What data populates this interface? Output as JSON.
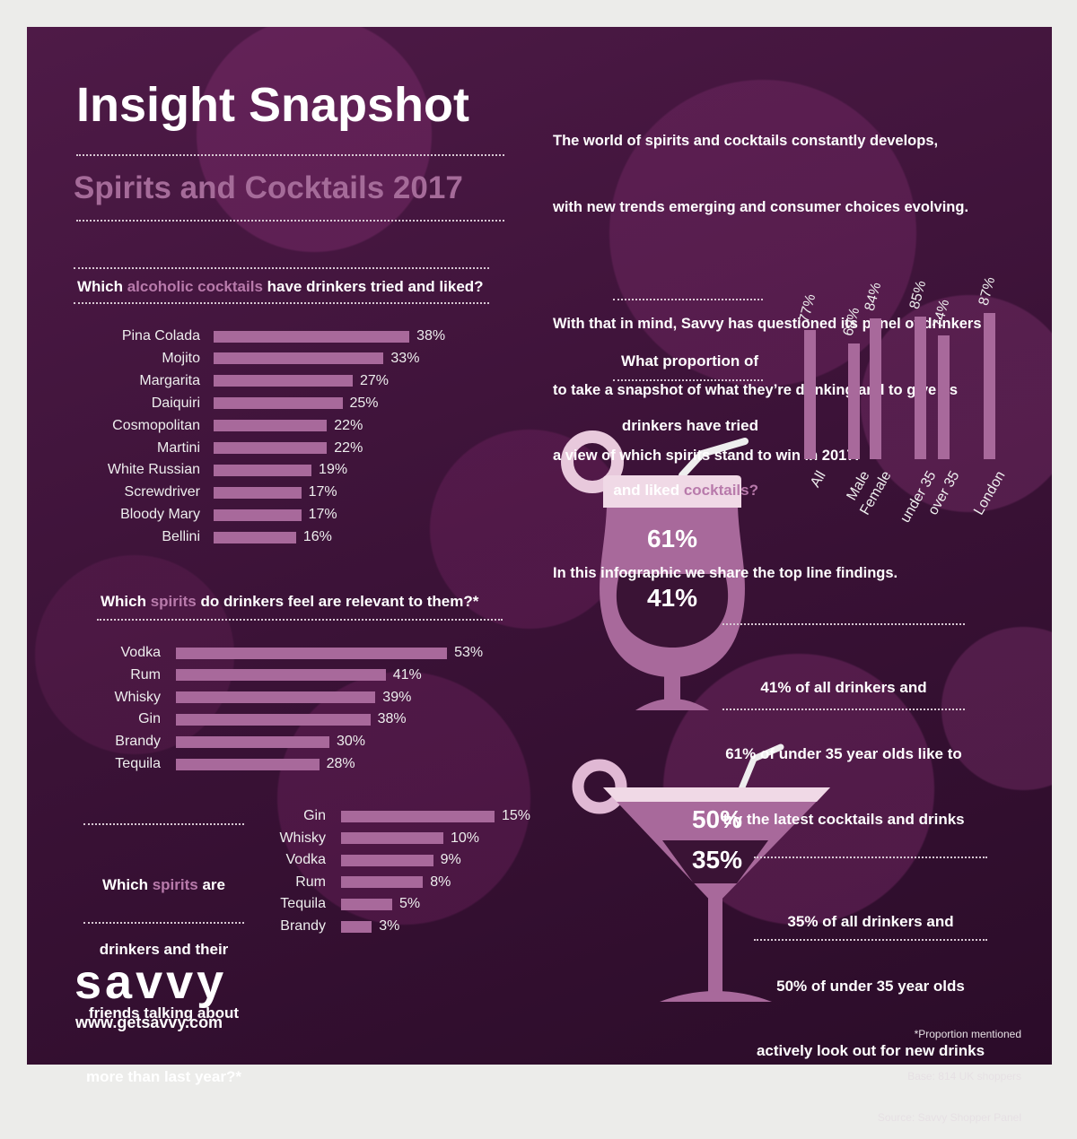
{
  "header": {
    "title": "Insight Snapshot",
    "subtitle": "Spirits and Cocktails 2017"
  },
  "intro": [
    [
      "The world of spirits and cocktails constantly develops,",
      "with new trends emerging and consumer choices evolving."
    ],
    [
      "With that in mind, Savvy has questioned its panel of drinkers",
      "to take a snapshot of what they’re drinking and to give us",
      "a view of which spirits stand to win in 2017."
    ],
    [
      "In this infographic we share the top line findings."
    ]
  ],
  "chart_data": [
    {
      "type": "bar",
      "orientation": "horizontal",
      "color": "#a8699b",
      "title": [
        "Which ",
        "alcoholic cocktails",
        " have drinkers tried and liked?"
      ],
      "categories": [
        "Pina Colada",
        "Mojito",
        "Margarita",
        "Daiquiri",
        "Cosmopolitan",
        "Martini",
        "White Russian",
        "Screwdriver",
        "Bloody Mary",
        "Bellini"
      ],
      "values": [
        38,
        33,
        27,
        25,
        22,
        22,
        19,
        17,
        17,
        16
      ],
      "value_labels": [
        "38%",
        "33%",
        "27%",
        "25%",
        "22%",
        "22%",
        "19%",
        "17%",
        "17%",
        "16%"
      ]
    },
    {
      "type": "bar",
      "orientation": "horizontal",
      "color": "#a8699b",
      "title": [
        "Which ",
        "spirits",
        " do drinkers feel are relevant to them?*"
      ],
      "categories": [
        "Vodka",
        "Rum",
        "Whisky",
        "Gin",
        "Brandy",
        "Tequila"
      ],
      "values": [
        53,
        41,
        39,
        38,
        30,
        28
      ],
      "value_labels": [
        "53%",
        "41%",
        "39%",
        "38%",
        "30%",
        "28%"
      ]
    },
    {
      "type": "bar",
      "orientation": "horizontal",
      "color": "#a8699b",
      "title": [
        [
          "Which ",
          "spirits",
          " are"
        ],
        [
          "drinkers and their"
        ],
        [
          "friends talking about"
        ],
        [
          "more than last year?*"
        ]
      ],
      "categories": [
        "Gin",
        "Whisky",
        "Vodka",
        "Rum",
        "Tequila",
        "Brandy"
      ],
      "values": [
        15,
        10,
        9,
        8,
        5,
        3
      ],
      "value_labels": [
        "15%",
        "10%",
        "9%",
        "8%",
        "5%",
        "3%"
      ]
    },
    {
      "type": "bar",
      "orientation": "vertical",
      "color": "#a8699b",
      "title": [
        [
          "What proportion of"
        ],
        [
          "drinkers have tried"
        ],
        [
          "and liked ",
          "cocktails?"
        ]
      ],
      "categories": [
        "All",
        "Male",
        "Female",
        "under 35",
        "over 35",
        "London"
      ],
      "values": [
        77,
        69,
        84,
        85,
        74,
        87
      ],
      "value_labels": [
        "77%",
        "69%",
        "84%",
        "85%",
        "74%",
        "87%"
      ]
    }
  ],
  "glasses": [
    {
      "top": "61%",
      "bottom": "41%",
      "caption": [
        [
          "41%",
          " of all drinkers and"
        ],
        [
          "61%",
          " of under 35 year olds like to"
        ],
        [
          "try the latest cocktails and drinks"
        ]
      ]
    },
    {
      "top": "50%",
      "bottom": "35%",
      "caption": [
        [
          "35%",
          " of all drinkers and"
        ],
        [
          "50%",
          " of under 35 year olds"
        ],
        [
          "actively look out for new drinks"
        ]
      ]
    }
  ],
  "footer": {
    "brand": "savvy",
    "url": "www.getsavvy.com",
    "notes": [
      "*Proportion mentioned",
      "Base: 814 UK shoppers",
      "Source: Savvy Shopper Panel"
    ]
  }
}
